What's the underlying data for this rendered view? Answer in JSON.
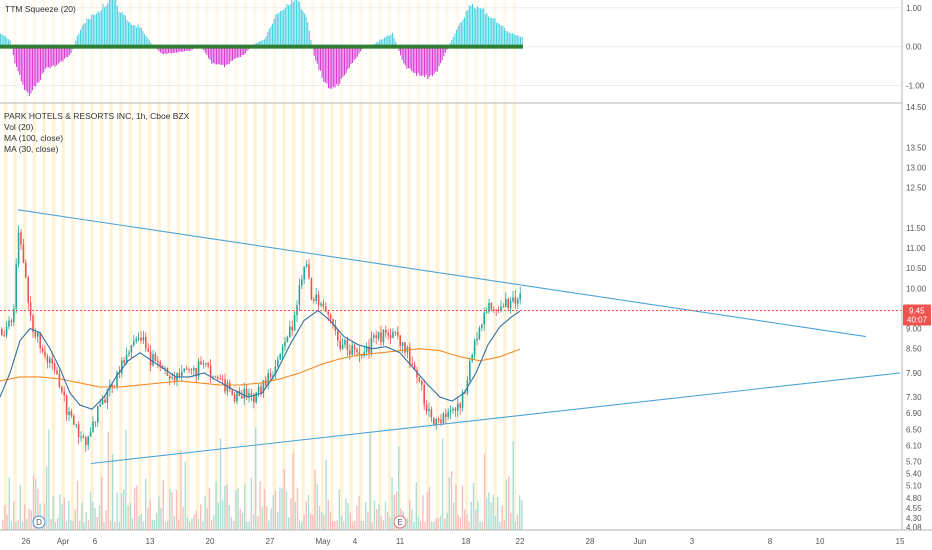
{
  "chart_data": [
    {
      "type": "bar",
      "title": "TTM Squeeze (20)",
      "ylim": [
        -1.45,
        1.2
      ],
      "y_ticks": [
        "1.00",
        "0.00",
        "-1.00"
      ],
      "y_tick_values": [
        1,
        0,
        -1
      ],
      "zero_line_color": "#2e7d32",
      "positive_color": "#4dd0e1",
      "negative_color": "#d63fd6",
      "histogram_keypoints": [
        [
          0,
          0.35
        ],
        [
          10,
          0.15
        ],
        [
          14,
          -0.4
        ],
        [
          28,
          -1.3
        ],
        [
          36,
          -1.0
        ],
        [
          46,
          -0.55
        ],
        [
          56,
          -0.5
        ],
        [
          70,
          -0.2
        ],
        [
          82,
          0.6
        ],
        [
          100,
          0.95
        ],
        [
          112,
          1.3
        ],
        [
          120,
          0.9
        ],
        [
          130,
          0.6
        ],
        [
          140,
          0.5
        ],
        [
          150,
          0.1
        ],
        [
          162,
          -0.2
        ],
        [
          176,
          -0.15
        ],
        [
          190,
          -0.1
        ],
        [
          200,
          0.05
        ],
        [
          212,
          -0.45
        ],
        [
          224,
          -0.5
        ],
        [
          236,
          -0.3
        ],
        [
          244,
          -0.2
        ],
        [
          252,
          0.05
        ],
        [
          264,
          0.2
        ],
        [
          274,
          0.75
        ],
        [
          286,
          1.05
        ],
        [
          296,
          1.3
        ],
        [
          306,
          0.75
        ],
        [
          314,
          -0.3
        ],
        [
          324,
          -0.9
        ],
        [
          332,
          -1.15
        ],
        [
          342,
          -0.85
        ],
        [
          350,
          -0.5
        ],
        [
          362,
          -0.05
        ],
        [
          376,
          0.1
        ],
        [
          392,
          0.35
        ],
        [
          404,
          -0.5
        ],
        [
          416,
          -0.7
        ],
        [
          428,
          -0.8
        ],
        [
          436,
          -0.65
        ],
        [
          446,
          -0.1
        ],
        [
          458,
          0.55
        ],
        [
          470,
          1.05
        ],
        [
          482,
          0.95
        ],
        [
          494,
          0.7
        ],
        [
          504,
          0.45
        ],
        [
          514,
          0.3
        ],
        [
          523,
          0.25
        ]
      ]
    },
    {
      "type": "candlestick",
      "title": "PARK HOTELS & RESORTS INC, 1h, Cboe BZX",
      "legend": [
        "Vol (20)",
        "MA (100, close)",
        "MA (30, close)"
      ],
      "ylim": [
        4.0,
        14.6
      ],
      "y_ticks": [
        "14.50",
        "13.50",
        "13.00",
        "12.50",
        "11.50",
        "11.00",
        "10.50",
        "10.00",
        "9.50",
        "9.00",
        "8.50",
        "7.90",
        "7.30",
        "6.90",
        "6.50",
        "6.10",
        "5.70",
        "5.40",
        "5.10",
        "4.80",
        "4.55",
        "4.30",
        "4.08"
      ],
      "y_tick_values": [
        14.5,
        13.5,
        13.0,
        12.5,
        11.5,
        11.0,
        10.5,
        10.0,
        9.5,
        9.0,
        8.5,
        7.9,
        7.3,
        6.9,
        6.5,
        6.1,
        5.7,
        5.4,
        5.1,
        4.8,
        4.55,
        4.3,
        4.08
      ],
      "x_dates": [
        "26",
        "Apr",
        "6",
        "13",
        "20",
        "27",
        "May",
        "4",
        "11",
        "18",
        "22",
        "28",
        "Jun",
        "3",
        "8",
        "10",
        "15"
      ],
      "last_price": "9.45",
      "countdown": "40:07",
      "price_keypoints": [
        [
          0,
          9.0
        ],
        [
          4,
          8.8
        ],
        [
          8,
          9.2
        ],
        [
          12,
          9.0
        ],
        [
          16,
          10.7
        ],
        [
          19,
          11.7
        ],
        [
          22,
          10.6
        ],
        [
          26,
          10.1
        ],
        [
          30,
          9.1
        ],
        [
          36,
          8.8
        ],
        [
          44,
          8.3
        ],
        [
          52,
          8.1
        ],
        [
          60,
          7.6
        ],
        [
          66,
          7.0
        ],
        [
          74,
          6.6
        ],
        [
          80,
          6.4
        ],
        [
          86,
          6.1
        ],
        [
          92,
          6.5
        ],
        [
          98,
          7.0
        ],
        [
          106,
          7.3
        ],
        [
          114,
          7.7
        ],
        [
          122,
          8.1
        ],
        [
          130,
          8.4
        ],
        [
          136,
          8.9
        ],
        [
          142,
          8.7
        ],
        [
          148,
          8.3
        ],
        [
          156,
          8.1
        ],
        [
          164,
          8.0
        ],
        [
          172,
          7.7
        ],
        [
          180,
          7.8
        ],
        [
          188,
          7.9
        ],
        [
          196,
          8.0
        ],
        [
          204,
          8.1
        ],
        [
          212,
          7.9
        ],
        [
          220,
          7.6
        ],
        [
          228,
          7.5
        ],
        [
          236,
          7.3
        ],
        [
          244,
          7.4
        ],
        [
          252,
          7.2
        ],
        [
          260,
          7.5
        ],
        [
          268,
          7.8
        ],
        [
          276,
          8.2
        ],
        [
          284,
          8.7
        ],
        [
          292,
          9.1
        ],
        [
          300,
          10.2
        ],
        [
          305,
          10.6
        ],
        [
          310,
          9.9
        ],
        [
          318,
          9.6
        ],
        [
          326,
          9.3
        ],
        [
          334,
          8.8
        ],
        [
          342,
          8.6
        ],
        [
          350,
          8.5
        ],
        [
          358,
          8.4
        ],
        [
          366,
          8.5
        ],
        [
          374,
          8.7
        ],
        [
          382,
          8.8
        ],
        [
          390,
          8.9
        ],
        [
          398,
          8.7
        ],
        [
          404,
          8.5
        ],
        [
          410,
          8.2
        ],
        [
          416,
          7.8
        ],
        [
          424,
          7.2
        ],
        [
          430,
          6.8
        ],
        [
          436,
          6.6
        ],
        [
          444,
          6.8
        ],
        [
          452,
          7.0
        ],
        [
          460,
          7.2
        ],
        [
          466,
          7.6
        ],
        [
          470,
          8.4
        ],
        [
          476,
          8.9
        ],
        [
          482,
          9.2
        ],
        [
          488,
          9.5
        ],
        [
          494,
          9.4
        ],
        [
          500,
          9.5
        ],
        [
          506,
          9.6
        ],
        [
          512,
          9.7
        ],
        [
          518,
          9.85
        ],
        [
          522,
          9.45
        ]
      ],
      "ma30_keypoints": [
        [
          0,
          7.3
        ],
        [
          10,
          7.9
        ],
        [
          20,
          8.7
        ],
        [
          30,
          9.0
        ],
        [
          40,
          8.9
        ],
        [
          50,
          8.5
        ],
        [
          60,
          8.0
        ],
        [
          70,
          7.4
        ],
        [
          80,
          7.1
        ],
        [
          92,
          7.0
        ],
        [
          104,
          7.3
        ],
        [
          116,
          7.8
        ],
        [
          128,
          8.2
        ],
        [
          140,
          8.4
        ],
        [
          152,
          8.2
        ],
        [
          164,
          8.0
        ],
        [
          176,
          7.8
        ],
        [
          190,
          7.8
        ],
        [
          204,
          7.9
        ],
        [
          218,
          7.7
        ],
        [
          232,
          7.5
        ],
        [
          248,
          7.3
        ],
        [
          262,
          7.4
        ],
        [
          276,
          7.9
        ],
        [
          290,
          8.6
        ],
        [
          304,
          9.2
        ],
        [
          318,
          9.45
        ],
        [
          330,
          9.2
        ],
        [
          344,
          8.8
        ],
        [
          358,
          8.6
        ],
        [
          372,
          8.5
        ],
        [
          386,
          8.55
        ],
        [
          400,
          8.4
        ],
        [
          414,
          8.0
        ],
        [
          428,
          7.6
        ],
        [
          440,
          7.3
        ],
        [
          452,
          7.2
        ],
        [
          464,
          7.4
        ],
        [
          476,
          7.9
        ],
        [
          488,
          8.6
        ],
        [
          500,
          9.05
        ],
        [
          512,
          9.3
        ],
        [
          521,
          9.45
        ]
      ],
      "ma100_keypoints": [
        [
          0,
          7.7
        ],
        [
          20,
          7.8
        ],
        [
          40,
          7.8
        ],
        [
          60,
          7.75
        ],
        [
          80,
          7.65
        ],
        [
          100,
          7.55
        ],
        [
          120,
          7.55
        ],
        [
          140,
          7.6
        ],
        [
          160,
          7.65
        ],
        [
          180,
          7.7
        ],
        [
          200,
          7.65
        ],
        [
          220,
          7.6
        ],
        [
          240,
          7.6
        ],
        [
          260,
          7.65
        ],
        [
          280,
          7.75
        ],
        [
          300,
          7.9
        ],
        [
          320,
          8.1
        ],
        [
          340,
          8.25
        ],
        [
          360,
          8.35
        ],
        [
          380,
          8.4
        ],
        [
          400,
          8.45
        ],
        [
          420,
          8.5
        ],
        [
          440,
          8.45
        ],
        [
          460,
          8.3
        ],
        [
          480,
          8.2
        ],
        [
          500,
          8.3
        ],
        [
          521,
          8.5
        ]
      ],
      "trendlines": [
        {
          "x1": 18,
          "y1": 11.95,
          "x2": 866,
          "y2": 8.8
        },
        {
          "x1": 91,
          "y1": 5.65,
          "x2": 900,
          "y2": 7.9
        }
      ]
    }
  ],
  "colors": {
    "candle_up": "#26a69a",
    "candle_down": "#ef5350",
    "ma30": "#2f6fa7",
    "ma100": "#f28c28",
    "trendline": "#4da3d8",
    "session_band": "#ffe8b0",
    "price_tag": "#ef5350"
  },
  "markers": {
    "dividend": "D",
    "earnings": "E"
  }
}
